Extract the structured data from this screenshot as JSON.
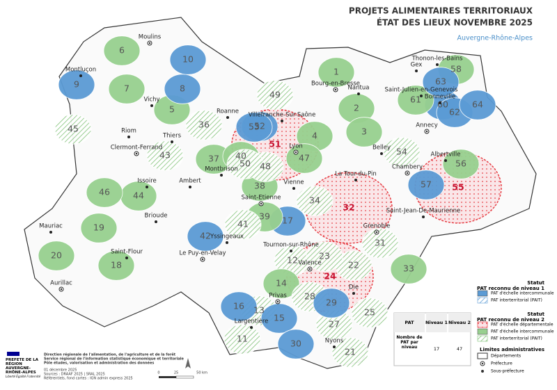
{
  "header": {
    "title_line1": "PROJETS ALIMENTAIRES TERRITORIAUX",
    "title_line2": "ÉTAT DES LIEUX NOVEMBRE 2025",
    "subtitle": "Auvergne-Rhône-Alpes"
  },
  "territories": [
    {
      "label": "1",
      "legend_item": 3
    },
    {
      "label": "2",
      "legend_item": 3
    },
    {
      "label": "3",
      "legend_item": 3
    },
    {
      "label": "4",
      "legend_item": 3
    },
    {
      "label": "5",
      "legend_item": 3
    },
    {
      "label": "6",
      "legend_item": 3
    },
    {
      "label": "7",
      "legend_item": 3
    },
    {
      "label": "8",
      "legend_item": 0
    },
    {
      "label": "9",
      "legend_item": 0
    },
    {
      "label": "10",
      "legend_item": 0
    },
    {
      "label": "11",
      "legend_item": 4
    },
    {
      "label": "12",
      "legend_item": 4
    },
    {
      "label": "13",
      "legend_item": 4
    },
    {
      "label": "14",
      "legend_item": 3
    },
    {
      "label": "15",
      "legend_item": 0
    },
    {
      "label": "16",
      "legend_item": 0
    },
    {
      "label": "17",
      "legend_item": 0
    },
    {
      "label": "18",
      "legend_item": 3
    },
    {
      "label": "19",
      "legend_item": 3
    },
    {
      "label": "20",
      "legend_item": 3
    },
    {
      "label": "21",
      "legend_item": 4
    },
    {
      "label": "22",
      "legend_item": 4
    },
    {
      "label": "23",
      "legend_item": 4
    },
    {
      "label": "24",
      "legend_item": 2
    },
    {
      "label": "25",
      "legend_item": 4
    },
    {
      "label": "27",
      "legend_item": 4
    },
    {
      "label": "28",
      "legend_item": 4
    },
    {
      "label": "29",
      "legend_item": 0
    },
    {
      "label": "30",
      "legend_item": 0
    },
    {
      "label": "31",
      "legend_item": 4
    },
    {
      "label": "32",
      "legend_item": 2
    },
    {
      "label": "33",
      "legend_item": 3
    },
    {
      "label": "34",
      "legend_item": 4
    },
    {
      "label": "36",
      "legend_item": 4
    },
    {
      "label": "37",
      "legend_item": 3
    },
    {
      "label": "38",
      "legend_item": 3
    },
    {
      "label": "39",
      "legend_item": 3
    },
    {
      "label": "40",
      "legend_item": 3
    },
    {
      "label": "41",
      "legend_item": 4
    },
    {
      "label": "42",
      "legend_item": 0
    },
    {
      "label": "43",
      "legend_item": 4
    },
    {
      "label": "44",
      "legend_item": 3
    },
    {
      "label": "45",
      "legend_item": 4
    },
    {
      "label": "46",
      "legend_item": 3
    },
    {
      "label": "47",
      "legend_item": 3
    },
    {
      "label": "48",
      "legend_item": 4
    },
    {
      "label": "49",
      "legend_item": 4
    },
    {
      "label": "50",
      "legend_item": 4
    },
    {
      "label": "51",
      "legend_item": 2
    },
    {
      "label": "52",
      "legend_item": 0
    },
    {
      "label": "53",
      "legend_item": 0
    },
    {
      "label": "54",
      "legend_item": 4
    },
    {
      "label": "55",
      "legend_item": 2
    },
    {
      "label": "56",
      "legend_item": 3
    },
    {
      "label": "57",
      "legend_item": 0
    },
    {
      "label": "58",
      "legend_item": 3
    },
    {
      "label": "60",
      "legend_item": 0
    },
    {
      "label": "61",
      "legend_item": 3
    },
    {
      "label": "62",
      "legend_item": 0
    },
    {
      "label": "63",
      "legend_item": 0
    },
    {
      "label": "64",
      "legend_item": 0
    }
  ],
  "prefectures": [
    "Moulins",
    "Clermont-Ferrand",
    "Aurillac",
    "Le Puy-en-Velay",
    "Lyon",
    "Saint-Etienne",
    "Valence",
    "Privas",
    "Grenoble",
    "Chambery",
    "Annecy",
    "Bourg-en-Bresse"
  ],
  "sub_prefectures": [
    "Montluçon",
    "Vichy",
    "Riom",
    "Thiers",
    "Ambert",
    "Issoire",
    "Mauriac",
    "Saint-Flour",
    "Brioude",
    "Yssingeaux",
    "Montbrison",
    "Roanne",
    "Villefranche-Sur-Saône",
    "Vienne",
    "Tournon-sur-Rhône",
    "Largentière",
    "Die",
    "Nyons",
    "La Tour-du-Pin",
    "Belley",
    "Nantua",
    "Gex",
    "Thonon-les-Bains",
    "Saint-Julien-en-Genevois",
    "Bonneville",
    "Albertville",
    "Saint-Jean-De-Maurienne"
  ],
  "legend": {
    "status_title": "Statut",
    "level1_title": "PAT reconnu de niveau 1",
    "level2_title": "PAT reconnu de niveau 2",
    "limits_title": "Limites administratives",
    "items": [
      {
        "label": "PAT d'échelle intercommunale",
        "color": "#5b9bd5"
      },
      {
        "label": "PAT interterritorial (PAIT)",
        "color": "#5b9bd5"
      },
      {
        "label": "PAT d'échelle départementale",
        "color": "#e31b23"
      },
      {
        "label": "PAT d'échelle intercommunale",
        "color": "#98d08f"
      },
      {
        "label": "PAT interterritorial (PAIT)",
        "color": "#7cbf73"
      }
    ],
    "departments": "Départements",
    "prefecture": "Préfecture",
    "sub_prefecture": "Sous-préfecture"
  },
  "table": {
    "header": [
      "PAT",
      "Niveau 1",
      "Niveau 2"
    ],
    "row_label": "Nombre de PAT par niveau",
    "values": [
      17,
      47
    ]
  },
  "footer": {
    "prefect": "PRÉFETE DE LA RÉGION AUVERGNE-RHÔNE-ALPES",
    "motto": "Liberté Égalité Fraternité",
    "org1": "Direction régionale de l'alimentation, de l'agriculture et de la forêt",
    "org2": "Service régional de l'information statistique économique et territoriale",
    "org3": "Pôle études, valorisation et administration des données",
    "date": "01 décembre 2025",
    "sources": "Sources : DRAAF 2025 | SRAL 2025",
    "refs": "Référentiels, fond cartes : IGN admin express 2025",
    "scale": [
      "0",
      "25",
      "50 km"
    ]
  }
}
